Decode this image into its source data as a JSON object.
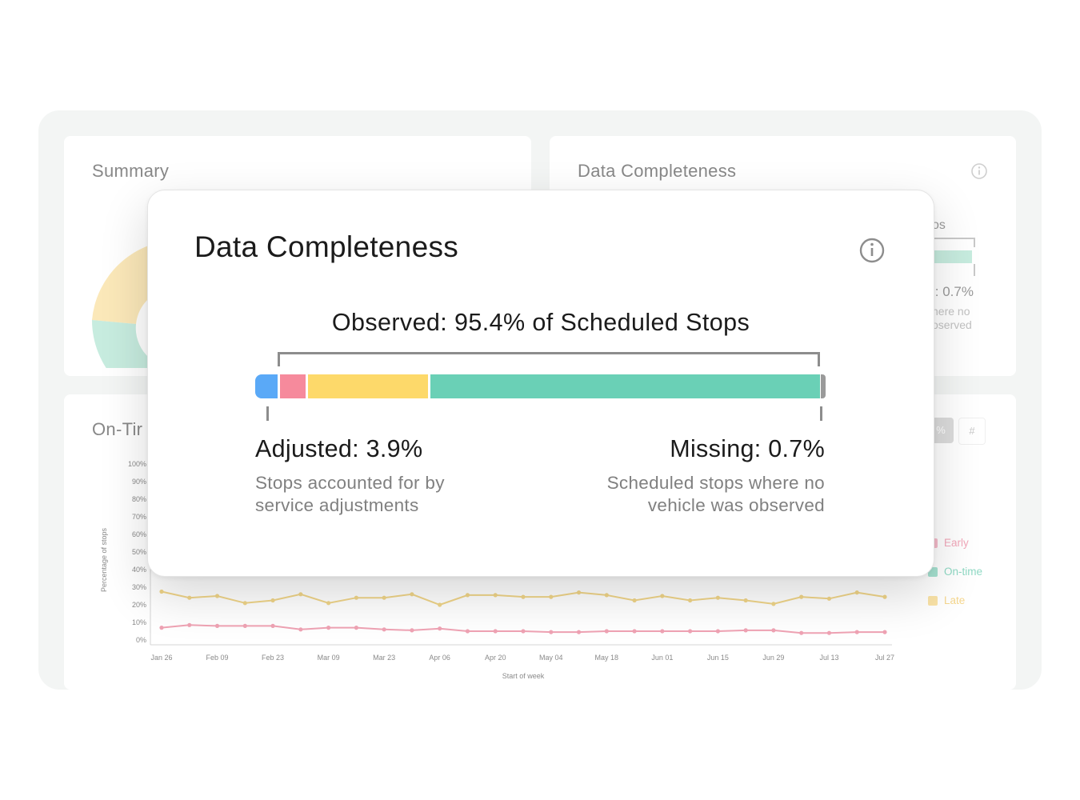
{
  "background_cards": {
    "summary": {
      "title": "Summary"
    },
    "data_completeness": {
      "title": "Data Completeness",
      "partial_text_1": "os",
      "partial_text_2": "j: 0.7%",
      "partial_text_3": "here no",
      "partial_text_4": "oserved"
    },
    "on_time": {
      "title": "On-Tir",
      "toggle_percent": "%",
      "toggle_count": "#",
      "legend": [
        {
          "label": "Early",
          "color": "#f09aae"
        },
        {
          "label": "On-time",
          "color": "#6fd0b6"
        },
        {
          "label": "Late",
          "color": "#f6cc66"
        }
      ]
    }
  },
  "chart_data": {
    "type": "line",
    "ylabel": "Percentage of stops",
    "xlabel": "Start of week",
    "y_ticks": [
      "100%",
      "90%",
      "80%",
      "70%",
      "60%",
      "50%",
      "40%",
      "30%",
      "20%",
      "10%",
      "0%"
    ],
    "ylim": [
      0,
      100
    ],
    "x_ticks": [
      "Jan 26",
      "Feb 09",
      "Feb 23",
      "Mar 09",
      "Mar 23",
      "Apr 06",
      "Apr 20",
      "May 04",
      "May 18",
      "Jun 01",
      "Jun 15",
      "Jun 29",
      "Jul 13",
      "Jul 27"
    ],
    "series": [
      {
        "name": "Late",
        "color": "#f0d589",
        "values": [
          27.5,
          24,
          25,
          21,
          22.5,
          26,
          21,
          24,
          24,
          26,
          20,
          25.5,
          25.5,
          24.5,
          24.5,
          27,
          25.5,
          22.5,
          25,
          22.5,
          24,
          22.5,
          20.5,
          24.5,
          23.5,
          27,
          24.5
        ]
      },
      {
        "name": "Early",
        "color": "#efa3b4",
        "values": [
          7,
          8.5,
          8,
          8,
          8,
          6,
          7,
          7,
          6,
          5.5,
          6.5,
          5,
          5,
          5,
          4.5,
          4.5,
          5,
          5,
          5,
          5,
          5,
          5.5,
          5.5,
          4,
          4,
          4.5,
          4.5
        ]
      }
    ]
  },
  "popup": {
    "title": "Data Completeness",
    "observed_label": "Observed: 95.4% of Scheduled Stops",
    "adjusted_label": "Adjusted: 3.9%",
    "adjusted_desc_line1": "Stops accounted for by",
    "adjusted_desc_line2": "service adjustments",
    "missing_label": "Missing: 0.7%",
    "missing_desc_line1": "Scheduled stops where no",
    "missing_desc_line2": "vehicle was observed",
    "bar_colors": {
      "blue": "#5aa9f7",
      "pink": "#f68a9c",
      "yellow": "#fdd96a",
      "green": "#6ad0b6",
      "missing": "#9a9a9a"
    }
  }
}
